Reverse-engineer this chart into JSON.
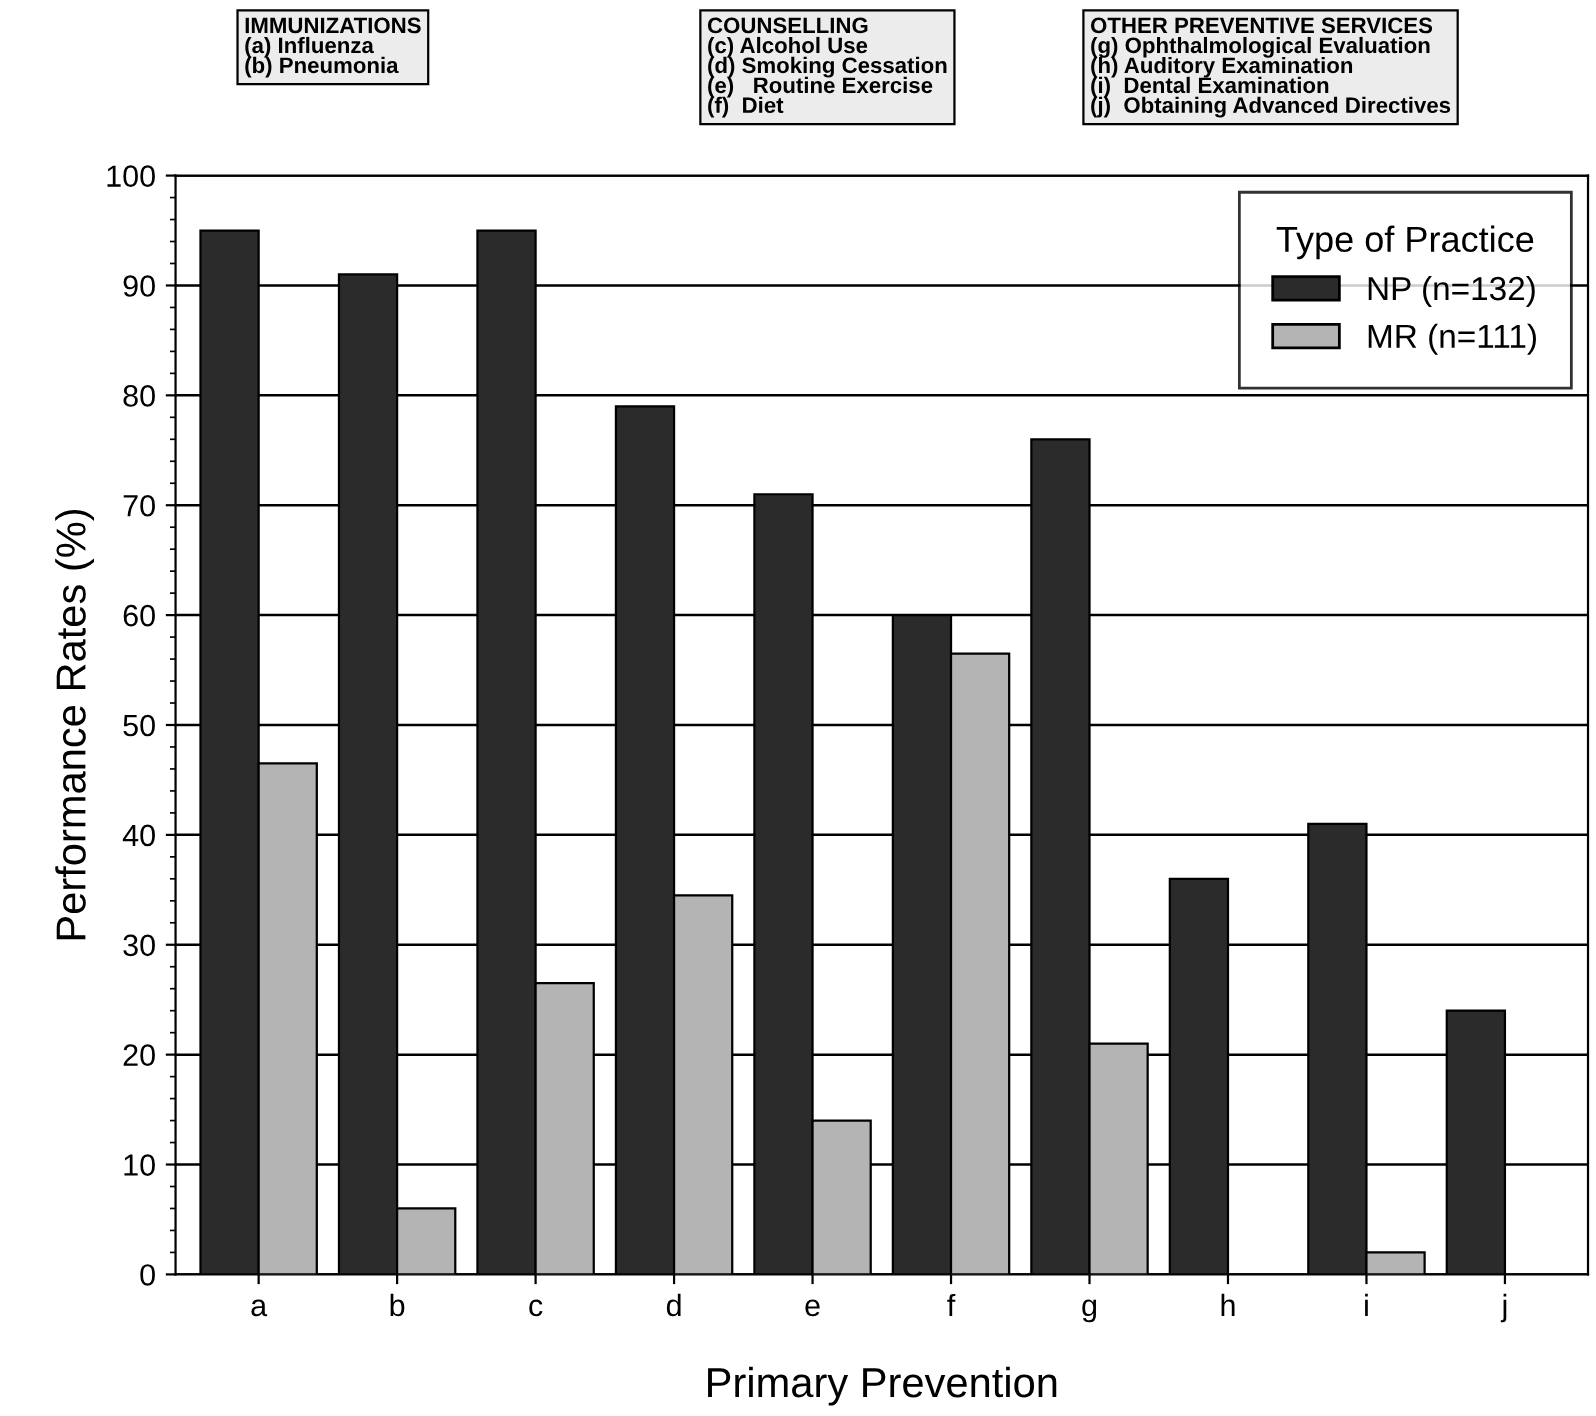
{
  "chart_data": {
    "type": "bar",
    "xlabel": "Primary Prevention",
    "ylabel": "Performance Rates (%)",
    "legend_title": "Type of Practice",
    "categories": [
      "a",
      "b",
      "c",
      "d",
      "e",
      "f",
      "g",
      "h",
      "i",
      "j"
    ],
    "series": [
      {
        "name": "NP (n=132)",
        "color": "#2b2b2b",
        "values": [
          95,
          91,
          95,
          79,
          71,
          60,
          76,
          36,
          41,
          24
        ]
      },
      {
        "name": "MR (n=111)",
        "color": "#b4b4b4",
        "values": [
          46.5,
          6,
          26.5,
          34.5,
          14,
          56.5,
          21,
          null,
          2,
          null
        ]
      }
    ],
    "ylim": [
      0,
      100
    ],
    "yticks": [
      0,
      10,
      20,
      30,
      40,
      50,
      60,
      70,
      80,
      90,
      100
    ],
    "grid": "y",
    "legend": "top right",
    "annotations": [
      "IMMUNIZATIONS\n(a) Influenza\n(b) Pneumonia",
      "COUNSELLING\n(c) Alcohol Use\n(d) Smoking Cessation\n(e)   Routine Exercise\n(f)  Diet",
      "OTHER PREVENTIVE SERVICES\n(g) Ophthalmological Evaluation\n(h) Auditory Examination\n(i)  Dental Examination\n(j)  Obtaining Advanced Directives"
    ]
  }
}
